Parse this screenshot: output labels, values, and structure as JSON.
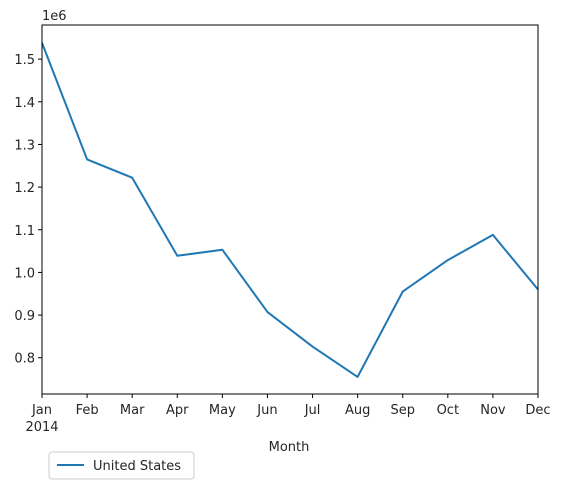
{
  "chart_data": {
    "type": "line",
    "title": "",
    "xlabel": "Month",
    "ylabel": "",
    "y_offset_label": "1e6",
    "y_multiplier": 1000000,
    "categories": [
      "Jan",
      "Feb",
      "Mar",
      "Apr",
      "May",
      "Jun",
      "Jul",
      "Aug",
      "Sep",
      "Oct",
      "Nov",
      "Dec"
    ],
    "year_label": "2014",
    "ylim": [
      0.715,
      1.58
    ],
    "yticks": [
      0.8,
      0.9,
      1.0,
      1.1,
      1.2,
      1.3,
      1.4,
      1.5
    ],
    "ytick_labels": [
      "0.8",
      "0.9",
      "1.0",
      "1.1",
      "1.2",
      "1.3",
      "1.4",
      "1.5"
    ],
    "grid": false,
    "legend_position": "below-left",
    "series": [
      {
        "name": "United States",
        "color": "#1f77b4",
        "values": [
          1.538,
          1.265,
          1.222,
          1.039,
          1.053,
          0.907,
          0.826,
          0.755,
          0.955,
          1.029,
          1.088,
          0.96
        ]
      }
    ]
  }
}
